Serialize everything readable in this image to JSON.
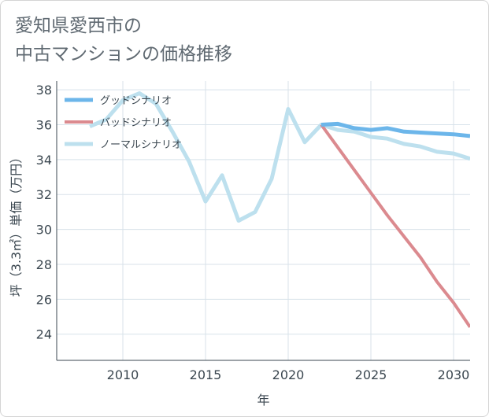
{
  "title": {
    "line1": "愛知県愛西市の",
    "line2": "中古マンションの価格推移"
  },
  "chart_data": {
    "type": "line",
    "title": "愛知県愛西市の中古マンションの価格推移",
    "xlabel": "年",
    "ylabel": "坪（3.3㎡）単価（万円）",
    "xlim": [
      2006,
      2031
    ],
    "ylim": [
      22.5,
      38.5
    ],
    "xticks": [
      2010,
      2015,
      2020,
      2025,
      2030
    ],
    "yticks": [
      24,
      26,
      28,
      30,
      32,
      34,
      36,
      38
    ],
    "grid": true,
    "legend_position": "top-left",
    "series": [
      {
        "name": "グッドシナリオ",
        "color": "#6cb6ea",
        "width": 5,
        "x": [
          2022,
          2023,
          2024,
          2025,
          2026,
          2027,
          2028,
          2029,
          2030,
          2031
        ],
        "y": [
          36.0,
          36.05,
          35.8,
          35.7,
          35.8,
          35.6,
          35.55,
          35.5,
          35.45,
          35.35
        ]
      },
      {
        "name": "バッドシナリオ",
        "color": "#db8a8f",
        "width": 4,
        "x": [
          2022,
          2023,
          2024,
          2025,
          2026,
          2027,
          2028,
          2029,
          2030,
          2031
        ],
        "y": [
          36.0,
          34.7,
          33.4,
          32.1,
          30.8,
          29.6,
          28.4,
          27.0,
          25.8,
          24.4
        ]
      },
      {
        "name": "ノーマルシナリオ",
        "color": "#bde0ee",
        "width": 5,
        "x": [
          2008,
          2009,
          2010,
          2011,
          2012,
          2013,
          2014,
          2015,
          2016,
          2017,
          2018,
          2019,
          2020,
          2021,
          2022,
          2023,
          2024,
          2025,
          2026,
          2027,
          2028,
          2029,
          2030,
          2031
        ],
        "y": [
          35.9,
          36.3,
          37.4,
          37.8,
          37.2,
          35.6,
          33.9,
          31.6,
          33.1,
          30.5,
          31.0,
          32.9,
          36.9,
          35.0,
          36.0,
          35.7,
          35.6,
          35.3,
          35.2,
          34.9,
          34.75,
          34.45,
          34.35,
          34.05
        ]
      }
    ]
  }
}
